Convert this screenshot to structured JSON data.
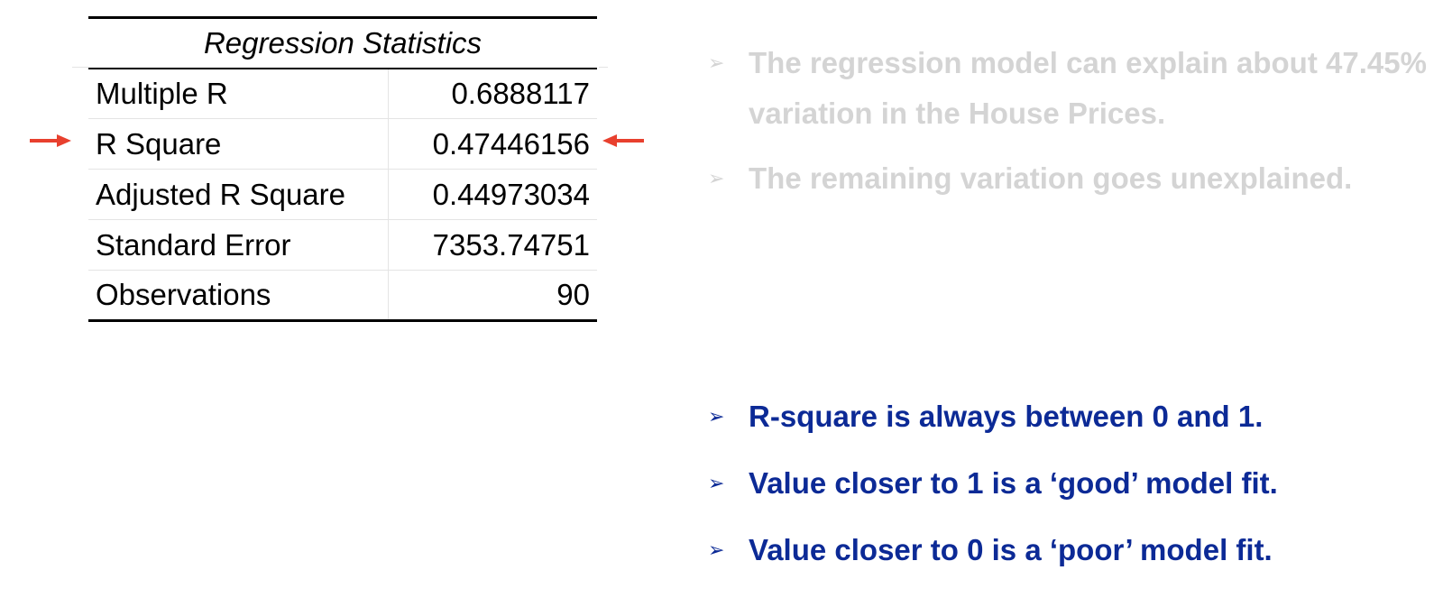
{
  "table": {
    "title": "Regression Statistics",
    "rows": [
      {
        "label": "Multiple R",
        "value": "0.6888117"
      },
      {
        "label": "R Square",
        "value": "0.47446156"
      },
      {
        "label": "Adjusted R Square",
        "value": "0.44973034"
      },
      {
        "label": "Standard Error",
        "value": "7353.74751"
      },
      {
        "label": "Observations",
        "value": "90"
      }
    ]
  },
  "highlight_color": "#e8402e",
  "bullet_glyph": "➢",
  "faded_points": [
    "The regression model can explain about 47.45% variation in the House Prices.",
    "The remaining variation goes unexplained."
  ],
  "key_points": [
    "R-square is always between 0 and 1.",
    "Value closer to 1 is a ‘good’ model fit.",
    "Value closer to 0 is a ‘poor’ model fit."
  ],
  "colors": {
    "faded_text": "#d4d4d4",
    "key_text": "#0c2a96"
  }
}
